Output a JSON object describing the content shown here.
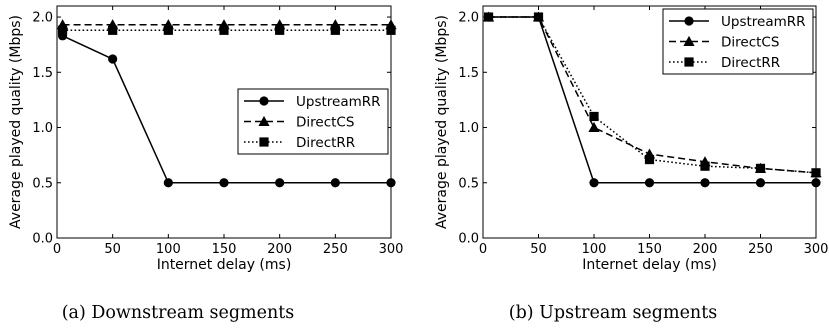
{
  "chart_data": [
    {
      "type": "line",
      "caption": "(a) Downstream segments",
      "xlabel": "Internet delay (ms)",
      "ylabel": "Average played quality (Mbps)",
      "xlim": [
        0,
        300
      ],
      "ylim": [
        0,
        2.1
      ],
      "xticks": [
        "0",
        "50",
        "100",
        "150",
        "200",
        "250",
        "300"
      ],
      "yticks": [
        "0.0",
        "0.5",
        "1.0",
        "1.5",
        "2.0"
      ],
      "legend_position": "center-right",
      "series": [
        {
          "name": "UpstreamRR",
          "style": "solid",
          "marker": "circle",
          "x": [
            5,
            50,
            100,
            150,
            200,
            250,
            300
          ],
          "y": [
            1.83,
            1.62,
            0.5,
            0.5,
            0.5,
            0.5,
            0.5
          ]
        },
        {
          "name": "DirectCS",
          "style": "dashed",
          "marker": "triangle",
          "x": [
            5,
            50,
            100,
            150,
            200,
            250,
            300
          ],
          "y": [
            1.93,
            1.93,
            1.93,
            1.93,
            1.93,
            1.93,
            1.93
          ]
        },
        {
          "name": "DirectRR",
          "style": "dotted",
          "marker": "square",
          "x": [
            5,
            50,
            100,
            150,
            200,
            250,
            300
          ],
          "y": [
            1.88,
            1.88,
            1.88,
            1.88,
            1.88,
            1.88,
            1.88
          ]
        }
      ]
    },
    {
      "type": "line",
      "caption": "(b) Upstream segments",
      "xlabel": "Internet delay (ms)",
      "ylabel": "Average played quality (Mbps)",
      "xlim": [
        0,
        300
      ],
      "ylim": [
        0,
        2.1
      ],
      "xticks": [
        "0",
        "50",
        "100",
        "150",
        "200",
        "250",
        "300"
      ],
      "yticks": [
        "0.0",
        "0.5",
        "1.0",
        "1.5",
        "2.0"
      ],
      "legend_position": "top-right",
      "series": [
        {
          "name": "UpstreamRR",
          "style": "solid",
          "marker": "circle",
          "x": [
            5,
            50,
            100,
            150,
            200,
            250,
            300
          ],
          "y": [
            2.0,
            2.0,
            0.5,
            0.5,
            0.5,
            0.5,
            0.5
          ]
        },
        {
          "name": "DirectCS",
          "style": "dashed",
          "marker": "triangle",
          "x": [
            5,
            50,
            100,
            150,
            200,
            250,
            300
          ],
          "y": [
            2.0,
            2.0,
            1.0,
            0.76,
            0.69,
            0.63,
            0.59
          ]
        },
        {
          "name": "DirectRR",
          "style": "dotted",
          "marker": "square",
          "x": [
            5,
            50,
            100,
            150,
            200,
            250,
            300
          ],
          "y": [
            2.0,
            2.0,
            1.1,
            0.71,
            0.65,
            0.63,
            0.59
          ]
        }
      ]
    }
  ]
}
